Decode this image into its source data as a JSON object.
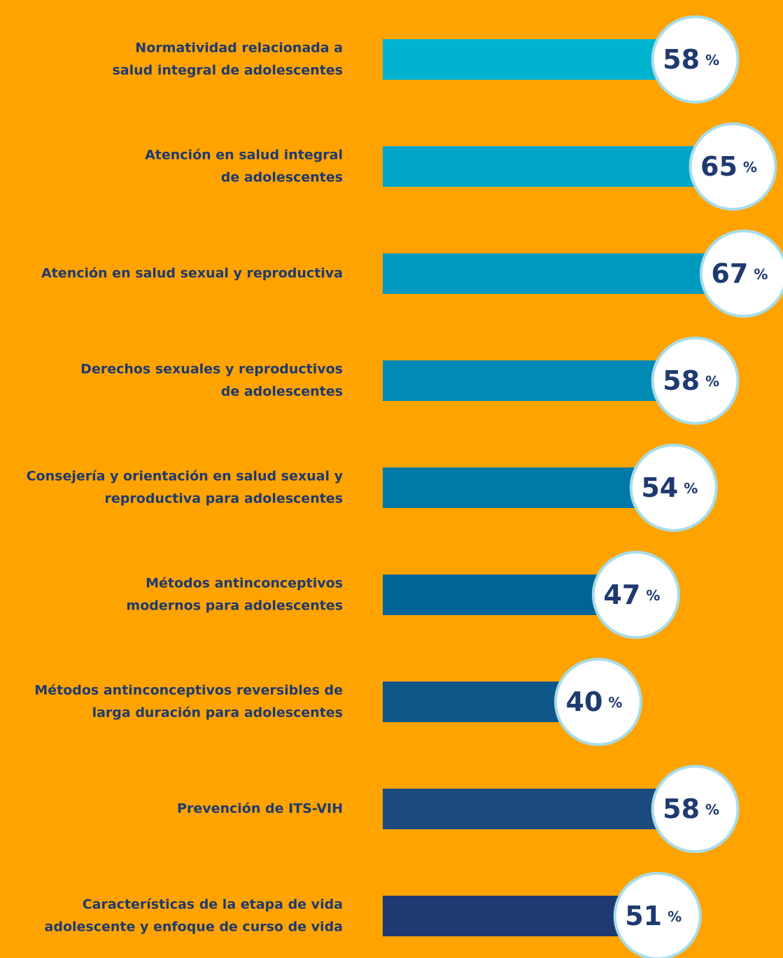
{
  "chart_data": {
    "type": "bar",
    "orientation": "horizontal",
    "categories": [
      [
        "Normatividad relacionada a",
        "salud integral de adolescentes"
      ],
      [
        "Atención en salud integral",
        "de adolescentes"
      ],
      [
        "Atención en salud sexual y reproductiva"
      ],
      [
        "Derechos sexuales y reproductivos",
        "de adolescentes"
      ],
      [
        "Consejería y orientación en salud sexual y",
        "reproductiva para adolescentes"
      ],
      [
        "Métodos antinconceptivos",
        "modernos para adolescentes"
      ],
      [
        "Métodos antinconceptivos reversibles de",
        "larga duración para adolescentes"
      ],
      [
        "Prevención de ITS-VIH"
      ],
      [
        "Características de la etapa de vida",
        "adolescente y enfoque de curso de vida"
      ]
    ],
    "values": [
      58,
      65,
      67,
      58,
      54,
      47,
      40,
      58,
      51
    ],
    "unit": "%",
    "colors": [
      "#00b4cf",
      "#00a6c8",
      "#0099c0",
      "#008ab5",
      "#0079a6",
      "#006595",
      "#0e5788",
      "#1a4a7e",
      "#1f3a70"
    ],
    "xlim": [
      0,
      100
    ]
  }
}
